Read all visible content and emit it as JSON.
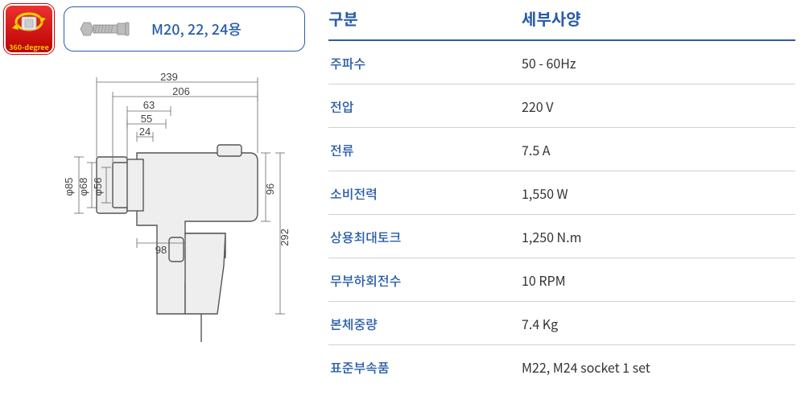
{
  "badge": {
    "label": "360-degree"
  },
  "size_spec": {
    "label": "M20, 22, 24용"
  },
  "diagram": {
    "dims": {
      "w_239": "239",
      "w_206": "206",
      "w_63": "63",
      "w_55": "55",
      "w_24": "24",
      "h_96": "96",
      "h_292": "292",
      "w_98": "98",
      "phi_85": "φ85",
      "phi_56": "φ56",
      "phi_68": "φ68"
    },
    "colors": {
      "dim_line": "#666666",
      "body_stroke": "#555555",
      "body_fill": "#eeeeee",
      "text": "#444444"
    }
  },
  "table": {
    "header": {
      "col1": "구분",
      "col2": "세부사양"
    },
    "rows": [
      {
        "k": "주파수",
        "v": "50 - 60Hz"
      },
      {
        "k": "전압",
        "v": "220 V"
      },
      {
        "k": "전류",
        "v": "7.5 A"
      },
      {
        "k": "소비전력",
        "v": "1,550 W"
      },
      {
        "k": "상용최대토크",
        "v": "1,250 N.m"
      },
      {
        "k": "무부하회전수",
        "v": "10 RPM"
      },
      {
        "k": "본체중량",
        "v": "7.4 Kg"
      },
      {
        "k": "표준부속품",
        "v": "M22, M24 socket 1 set"
      }
    ],
    "colors": {
      "accent": "#2a5da8",
      "row_border": "#d0d0d0",
      "value_text": "#333333"
    }
  }
}
